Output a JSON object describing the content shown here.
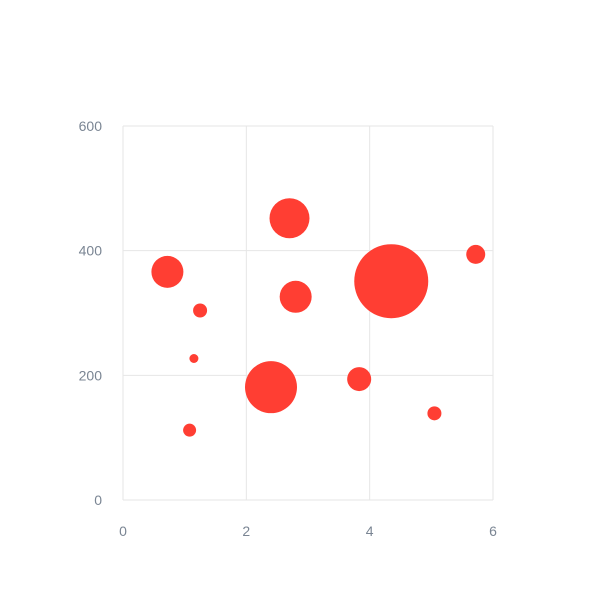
{
  "chart_data": {
    "type": "scatter",
    "title": "",
    "xlabel": "",
    "ylabel": "",
    "xlim": [
      0,
      6
    ],
    "ylim": [
      0,
      600
    ],
    "x_ticks": [
      "0",
      "2",
      "4",
      "6"
    ],
    "y_ticks": [
      "0",
      "200",
      "400",
      "600"
    ],
    "grid": true,
    "legend": "none",
    "colors": {
      "bubble": "#ff3e33"
    },
    "series": [
      {
        "points": [
          {
            "x": 0.72,
            "y": 366,
            "size": 16
          },
          {
            "x": 1.25,
            "y": 304,
            "size": 7
          },
          {
            "x": 1.15,
            "y": 227,
            "size": 4.5
          },
          {
            "x": 1.08,
            "y": 112,
            "size": 6.5
          },
          {
            "x": 2.4,
            "y": 181,
            "size": 26
          },
          {
            "x": 2.7,
            "y": 452,
            "size": 20
          },
          {
            "x": 2.8,
            "y": 326,
            "size": 16
          },
          {
            "x": 3.83,
            "y": 194,
            "size": 12
          },
          {
            "x": 4.35,
            "y": 351,
            "size": 37
          },
          {
            "x": 5.05,
            "y": 139,
            "size": 7
          },
          {
            "x": 5.72,
            "y": 394,
            "size": 9.5
          }
        ]
      }
    ]
  }
}
